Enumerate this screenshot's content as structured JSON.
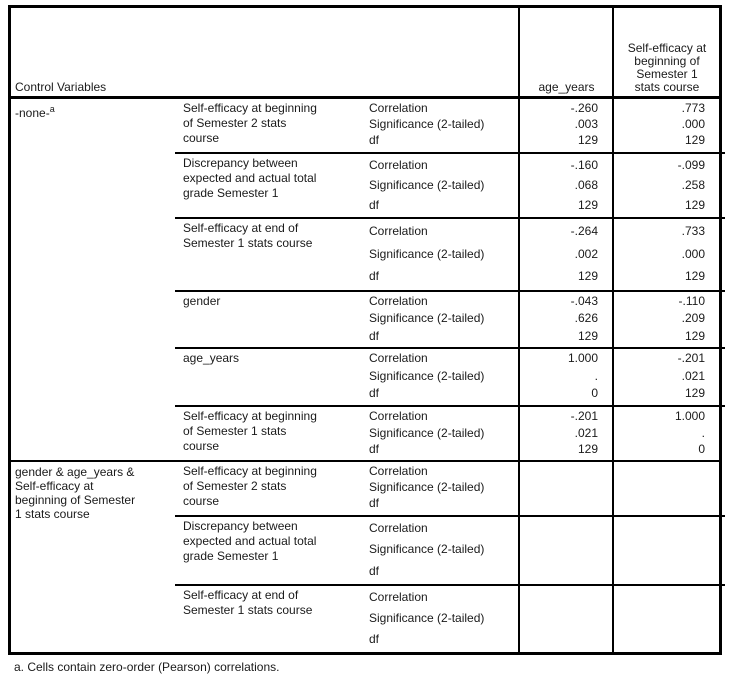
{
  "table": {
    "header": {
      "control_variables": "Control Variables",
      "col_age": "age_years",
      "col_se1": "Self-efficacy at\nbeginning of\nSemester 1\nstats course"
    },
    "stat_labels": [
      "Correlation",
      "Significance (2-tailed)",
      "df"
    ],
    "groups": [
      {
        "control": "-none-",
        "control_sup": "a",
        "rows": [
          {
            "variable": "Self-efficacy at beginning\nof Semester 2 stats\ncourse",
            "age": [
              "-.260",
              ".003",
              "129"
            ],
            "se1": [
              ".773",
              ".000",
              "129"
            ]
          },
          {
            "variable": "Discrepancy between\nexpected and actual total\ngrade Semester 1",
            "age": [
              "-.160",
              ".068",
              "129"
            ],
            "se1": [
              "-.099",
              ".258",
              "129"
            ]
          },
          {
            "variable": "Self-efficacy at end of\nSemester 1 stats course",
            "age": [
              "-.264",
              ".002",
              "129"
            ],
            "se1": [
              ".733",
              ".000",
              "129"
            ]
          },
          {
            "variable": "gender",
            "age": [
              "-.043",
              ".626",
              "129"
            ],
            "se1": [
              "-.110",
              ".209",
              "129"
            ]
          },
          {
            "variable": "age_years",
            "age": [
              "1.000",
              ".",
              "0"
            ],
            "se1": [
              "-.201",
              ".021",
              "129"
            ]
          },
          {
            "variable": "Self-efficacy at beginning\nof Semester 1 stats\ncourse",
            "age": [
              "-.201",
              ".021",
              "129"
            ],
            "se1": [
              "1.000",
              ".",
              "0"
            ]
          }
        ]
      },
      {
        "control": "gender & age_years &\nSelf-efficacy at\nbeginning of Semester\n1 stats course",
        "rows": [
          {
            "variable": "Self-efficacy at beginning\nof Semester 2 stats\ncourse",
            "age": [
              "",
              "",
              ""
            ],
            "se1": [
              "",
              "",
              ""
            ]
          },
          {
            "variable": "Discrepancy between\nexpected and actual total\ngrade Semester 1",
            "age": [
              "",
              "",
              ""
            ],
            "se1": [
              "",
              "",
              ""
            ]
          },
          {
            "variable": "Self-efficacy at end of\nSemester 1 stats course",
            "age": [
              "",
              "",
              ""
            ],
            "se1": [
              "",
              "",
              ""
            ]
          }
        ]
      }
    ],
    "footnote": "a. Cells contain zero-order (Pearson) correlations."
  }
}
